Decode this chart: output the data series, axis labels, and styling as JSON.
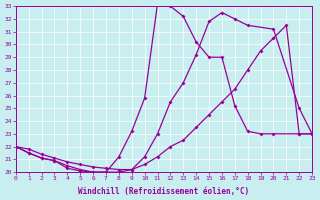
{
  "xlabel": "Windchill (Refroidissement éolien,°C)",
  "background_color": "#c8eef0",
  "line_color": "#990099",
  "xlim": [
    0,
    23
  ],
  "ylim": [
    20,
    33
  ],
  "xticks": [
    0,
    1,
    2,
    3,
    4,
    5,
    6,
    7,
    8,
    9,
    10,
    11,
    12,
    13,
    14,
    15,
    16,
    17,
    18,
    19,
    20,
    21,
    22,
    23
  ],
  "yticks": [
    20,
    21,
    22,
    23,
    24,
    25,
    26,
    27,
    28,
    29,
    30,
    31,
    32,
    33
  ],
  "line1_x": [
    0,
    1,
    2,
    3,
    4,
    5,
    6,
    7,
    8,
    9,
    10,
    11,
    12,
    13,
    14,
    15,
    16,
    17,
    18,
    19,
    20,
    22,
    23
  ],
  "line1_y": [
    22.0,
    21.5,
    21.1,
    20.9,
    20.3,
    20.1,
    20.0,
    20.0,
    21.2,
    23.2,
    25.8,
    33.2,
    33.0,
    32.2,
    30.2,
    29.0,
    29.0,
    25.2,
    23.2,
    23.0,
    23.0,
    23.0,
    23.0
  ],
  "line2_x": [
    0,
    1,
    2,
    3,
    4,
    5,
    6,
    7,
    8,
    9,
    10,
    11,
    12,
    13,
    14,
    15,
    16,
    17,
    18,
    20,
    22,
    23
  ],
  "line2_y": [
    22.0,
    21.5,
    21.1,
    20.9,
    20.5,
    20.2,
    20.0,
    20.0,
    20.0,
    20.2,
    21.2,
    23.0,
    25.5,
    27.0,
    29.2,
    31.8,
    32.5,
    32.0,
    31.5,
    31.2,
    25.0,
    23.0
  ],
  "line3_x": [
    0,
    1,
    2,
    3,
    4,
    5,
    6,
    7,
    8,
    9,
    10,
    11,
    12,
    13,
    14,
    15,
    16,
    17,
    18,
    19,
    20,
    21,
    22,
    23
  ],
  "line3_y": [
    22.0,
    21.8,
    21.4,
    21.1,
    20.8,
    20.6,
    20.4,
    20.3,
    20.2,
    20.2,
    20.6,
    21.2,
    22.0,
    22.5,
    23.5,
    24.5,
    25.5,
    26.5,
    28.0,
    29.5,
    30.5,
    31.5,
    23.0,
    23.0
  ]
}
